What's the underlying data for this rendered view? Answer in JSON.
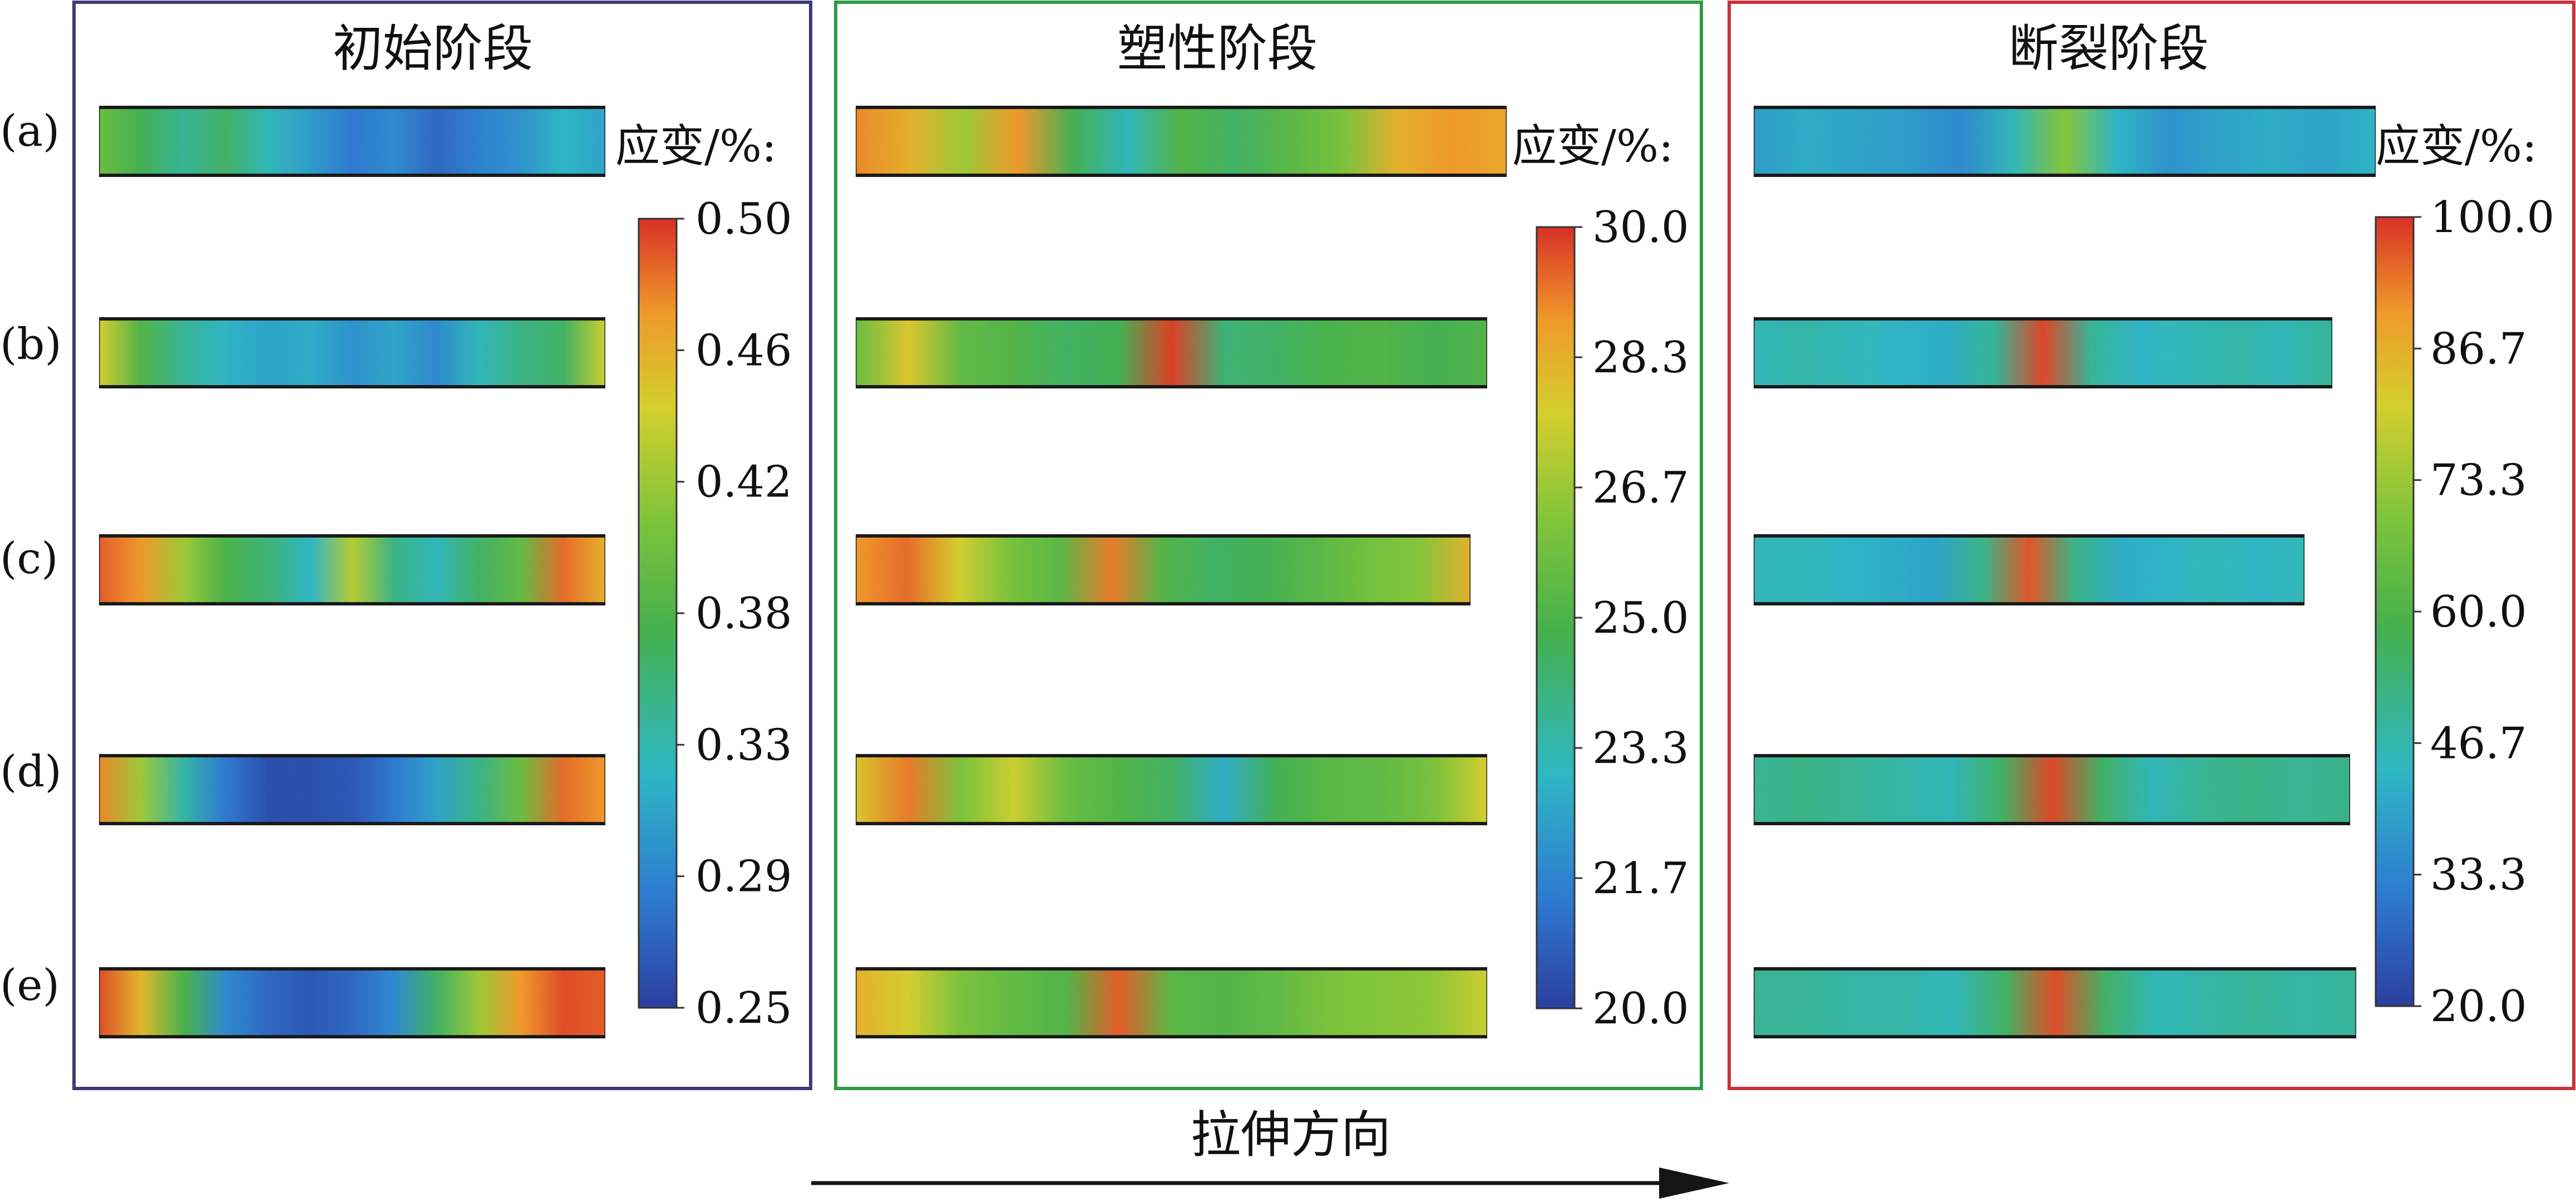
{
  "row_labels": [
    "(a)",
    "(b)",
    "(c)",
    "(d)",
    "(e)"
  ],
  "panels": [
    {
      "title": "初始阶段",
      "border_color": "#3f3a78",
      "colorbar": {
        "label": "应变/%:",
        "ticks": [
          "0.50",
          "0.46",
          "0.42",
          "0.38",
          "0.33",
          "0.29",
          "0.25"
        ],
        "min": 0.25,
        "max": 0.5
      },
      "strips": [
        {
          "row": "(a)",
          "strain_field": [
            0.52,
            0.42,
            0.34,
            0.4,
            0.3,
            0.22,
            0.14,
            0.18,
            0.1,
            0.16,
            0.2,
            0.28,
            0.24
          ]
        },
        {
          "row": "(b)",
          "strain_field": [
            0.72,
            0.46,
            0.34,
            0.28,
            0.24,
            0.26,
            0.2,
            0.24,
            0.18,
            0.3,
            0.36,
            0.4,
            0.7
          ]
        },
        {
          "row": "(c)",
          "strain_field": [
            0.94,
            0.86,
            0.62,
            0.44,
            0.38,
            0.28,
            0.66,
            0.36,
            0.3,
            0.4,
            0.5,
            0.92,
            0.8
          ]
        },
        {
          "row": "(d)",
          "strain_field": [
            0.88,
            0.62,
            0.32,
            0.14,
            0.04,
            0.04,
            0.06,
            0.14,
            0.24,
            0.36,
            0.52,
            0.92,
            0.86
          ]
        },
        {
          "row": "(e)",
          "strain_field": [
            0.96,
            0.78,
            0.44,
            0.18,
            0.1,
            0.06,
            0.1,
            0.18,
            0.4,
            0.62,
            0.86,
            0.96,
            0.94
          ]
        }
      ]
    },
    {
      "title": "塑性阶段",
      "border_color": "#2e9a44",
      "colorbar": {
        "label": "应变/%:",
        "ticks": [
          "30.0",
          "28.3",
          "26.7",
          "25.0",
          "23.3",
          "21.7",
          "20.0"
        ],
        "min": 20.0,
        "max": 30.0
      },
      "strips": [
        {
          "row": "(a)",
          "strain_field": [
            0.88,
            0.8,
            0.62,
            0.86,
            0.42,
            0.3,
            0.46,
            0.4,
            0.48,
            0.56,
            0.8,
            0.86,
            0.82
          ]
        },
        {
          "row": "(b)",
          "strain_field": [
            0.52,
            0.74,
            0.5,
            0.46,
            0.4,
            0.42,
            0.98,
            0.38,
            0.4,
            0.44,
            0.46,
            0.42,
            0.46
          ]
        },
        {
          "row": "(c)",
          "strain_field": [
            0.86,
            0.92,
            0.72,
            0.56,
            0.48,
            0.9,
            0.46,
            0.4,
            0.42,
            0.48,
            0.54,
            0.58,
            0.8
          ]
        },
        {
          "row": "(d)",
          "strain_field": [
            0.74,
            0.9,
            0.56,
            0.7,
            0.52,
            0.46,
            0.4,
            0.26,
            0.42,
            0.48,
            0.5,
            0.56,
            0.72
          ]
        },
        {
          "row": "(e)",
          "strain_field": [
            0.8,
            0.72,
            0.56,
            0.5,
            0.46,
            0.94,
            0.48,
            0.46,
            0.5,
            0.56,
            0.58,
            0.6,
            0.7
          ]
        }
      ]
    },
    {
      "title": "断裂阶段",
      "border_color": "#c8323c",
      "colorbar": {
        "label": "应变/%:",
        "ticks": [
          "100.0",
          "86.7",
          "73.3",
          "60.0",
          "46.7",
          "33.3",
          "20.0"
        ],
        "min": 20.0,
        "max": 100.0
      },
      "strips": [
        {
          "row": "(a)",
          "strain_field": [
            0.22,
            0.26,
            0.24,
            0.22,
            0.18,
            0.3,
            0.58,
            0.28,
            0.2,
            0.24,
            0.26,
            0.24,
            0.28
          ]
        },
        {
          "row": "(b)",
          "strain_field": [
            0.3,
            0.32,
            0.3,
            0.28,
            0.26,
            0.34,
            0.97,
            0.34,
            0.28,
            0.3,
            0.32,
            0.3,
            0.34
          ]
        },
        {
          "row": "(c)",
          "strain_field": [
            0.3,
            0.3,
            0.28,
            0.26,
            0.24,
            0.36,
            0.95,
            0.36,
            0.26,
            0.28,
            0.3,
            0.28,
            0.3
          ]
        },
        {
          "row": "(d)",
          "strain_field": [
            0.34,
            0.36,
            0.34,
            0.32,
            0.3,
            0.4,
            0.97,
            0.4,
            0.3,
            0.34,
            0.36,
            0.34,
            0.36
          ]
        },
        {
          "row": "(e)",
          "strain_field": [
            0.34,
            0.34,
            0.32,
            0.32,
            0.3,
            0.4,
            0.96,
            0.4,
            0.3,
            0.32,
            0.34,
            0.32,
            0.34
          ]
        }
      ]
    }
  ],
  "direction_label": "拉伸方向",
  "colors": {
    "arrow": "#151515",
    "text": "#111111",
    "colormap": [
      "#2b3f9e",
      "#2e7ad1",
      "#2fb7c4",
      "#45b04c",
      "#7fc43b",
      "#d4cf2e",
      "#ef9a2a",
      "#d83127"
    ]
  }
}
